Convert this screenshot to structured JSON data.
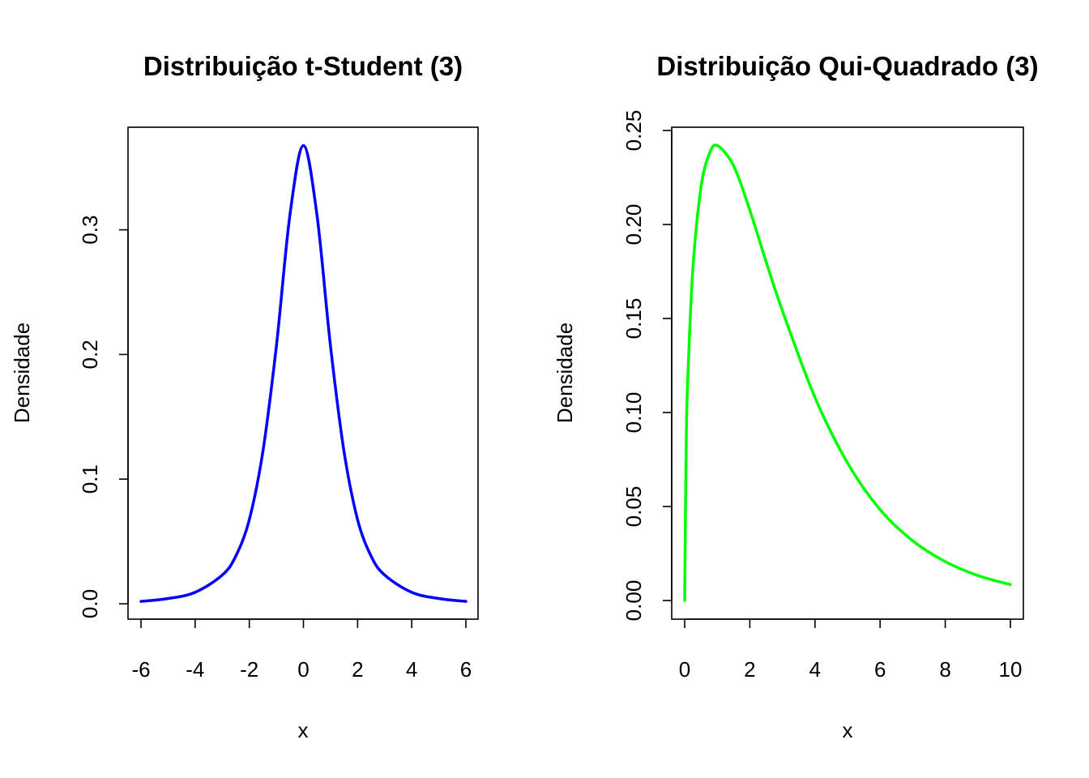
{
  "chart_data": [
    {
      "type": "line",
      "title": "Distribuição t-Student (3)",
      "xlabel": "x",
      "ylabel": "Densidade",
      "xlim": [
        -6,
        6
      ],
      "ylim": [
        0,
        0.368
      ],
      "xticks": [
        -6,
        -4,
        -2,
        0,
        2,
        4,
        6
      ],
      "xtick_labels": [
        "-6",
        "-4",
        "-2",
        "0",
        "2",
        "4",
        "6"
      ],
      "yticks": [
        0,
        0.1,
        0.2,
        0.3
      ],
      "ytick_labels": [
        "0.0",
        "0.1",
        "0.2",
        "0.3"
      ],
      "grid": false,
      "color": "#0000ff",
      "series": [
        {
          "x": [
            -6,
            -5,
            -4,
            -3,
            -2.5,
            -2,
            -1.5,
            -1,
            -0.5,
            0,
            0.5,
            1,
            1.5,
            2,
            2.5,
            3,
            4,
            5,
            6
          ],
          "y": [
            0.0019,
            0.0042,
            0.0092,
            0.023,
            0.0382,
            0.0675,
            0.122,
            0.2067,
            0.3118,
            0.3676,
            0.3118,
            0.2067,
            0.122,
            0.0675,
            0.0382,
            0.023,
            0.0092,
            0.0042,
            0.0019
          ]
        }
      ]
    },
    {
      "type": "line",
      "title": "Distribuição Qui-Quadrado (3)",
      "xlabel": "x",
      "ylabel": "Densidade",
      "xlim": [
        0,
        10
      ],
      "ylim": [
        0,
        0.25
      ],
      "xticks": [
        0,
        2,
        4,
        6,
        8,
        10
      ],
      "xtick_labels": [
        "0",
        "2",
        "4",
        "6",
        "8",
        "10"
      ],
      "yticks": [
        0,
        0.05,
        0.1,
        0.15,
        0.2,
        0.25
      ],
      "ytick_labels": [
        "0.00",
        "0.05",
        "0.10",
        "0.15",
        "0.20",
        "0.25"
      ],
      "grid": false,
      "color": "#00ff00",
      "series": [
        {
          "x": [
            0,
            0.05,
            0.1,
            0.25,
            0.5,
            0.75,
            1,
            1.5,
            2,
            2.5,
            3,
            4,
            5,
            6,
            7,
            8,
            9,
            10
          ],
          "y": [
            0,
            0.0873,
            0.12,
            0.176,
            0.2197,
            0.2373,
            0.242,
            0.2313,
            0.2076,
            0.1802,
            0.1542,
            0.108,
            0.0732,
            0.0483,
            0.0318,
            0.0207,
            0.0133,
            0.0085
          ]
        }
      ]
    }
  ]
}
